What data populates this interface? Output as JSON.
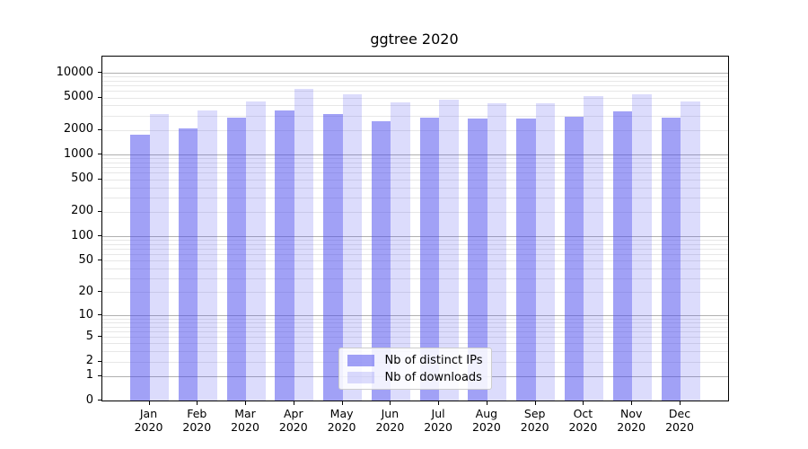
{
  "title": "ggtree 2020",
  "chart_data": {
    "type": "bar",
    "title": "ggtree 2020",
    "xlabel": "",
    "ylabel": "",
    "scale": "log10(value+1)",
    "grid": true,
    "legend_position": "lower center",
    "categories": [
      "Jan 2020",
      "Feb 2020",
      "Mar 2020",
      "Apr 2020",
      "May 2020",
      "Jun 2020",
      "Jul 2020",
      "Aug 2020",
      "Sep 2020",
      "Oct 2020",
      "Nov 2020",
      "Dec 2020"
    ],
    "series": [
      {
        "name": "Nb of distinct IPs",
        "color": "rgba(68,68,238,0.5)",
        "values": [
          1750,
          2100,
          2800,
          3500,
          3150,
          2550,
          2850,
          2750,
          2750,
          2900,
          3400,
          2850
        ]
      },
      {
        "name": "Nb of downloads",
        "color": "rgba(68,68,238,0.19)",
        "values": [
          3100,
          3500,
          4450,
          6350,
          5400,
          4350,
          4650,
          4250,
          4250,
          5250,
          5450,
          4500
        ]
      }
    ],
    "y_ticks": [
      0,
      1,
      2,
      5,
      10,
      20,
      50,
      100,
      200,
      500,
      1000,
      2000,
      5000,
      10000
    ],
    "ylim": [
      0,
      15500
    ]
  },
  "colors": {
    "bar_dark_rendered": "#a1a1f6",
    "bar_light_rendered": "#dbdbfb",
    "grid_major": "#b0b0b0",
    "grid_minor": "#e7e7e7",
    "axis": "#000000",
    "legend_border": "#cccccc"
  }
}
